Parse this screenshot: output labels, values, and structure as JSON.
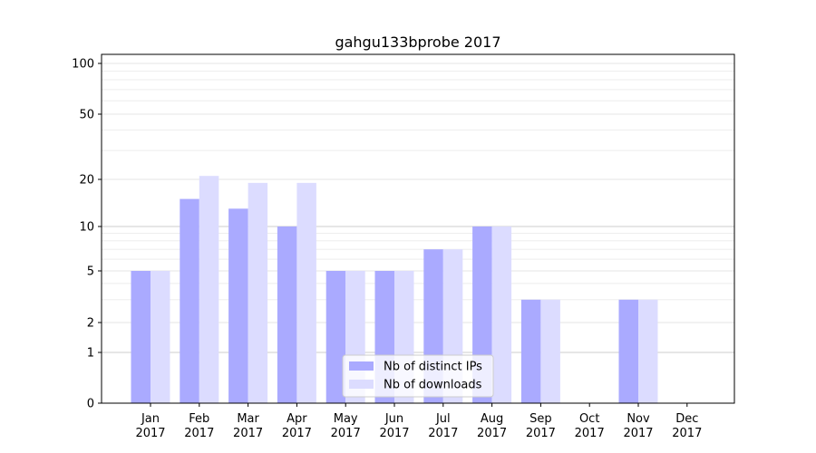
{
  "chart_data": {
    "type": "bar",
    "title": "gahgu133bprobe 2017",
    "xlabel": "",
    "ylabel": "",
    "y_scale": "symlog",
    "ylim": [
      0,
      120
    ],
    "y_ticks": [
      0,
      1,
      2,
      5,
      10,
      20,
      50,
      100
    ],
    "grid": true,
    "legend_position": "lower-center",
    "categories": [
      [
        "Jan",
        "2017"
      ],
      [
        "Feb",
        "2017"
      ],
      [
        "Mar",
        "2017"
      ],
      [
        "Apr",
        "2017"
      ],
      [
        "May",
        "2017"
      ],
      [
        "Jun",
        "2017"
      ],
      [
        "Jul",
        "2017"
      ],
      [
        "Aug",
        "2017"
      ],
      [
        "Sep",
        "2017"
      ],
      [
        "Oct",
        "2017"
      ],
      [
        "Nov",
        "2017"
      ],
      [
        "Dec",
        "2017"
      ]
    ],
    "series": [
      {
        "name": "Nb of distinct IPs",
        "color": "#aaaaff",
        "values": [
          5,
          15,
          13,
          10,
          5,
          5,
          7,
          10,
          3,
          0,
          3,
          0
        ]
      },
      {
        "name": "Nb of downloads",
        "color": "#dcdcff",
        "values": [
          5,
          21,
          19,
          19,
          5,
          5,
          7,
          10,
          3,
          0,
          3,
          0
        ]
      }
    ]
  }
}
